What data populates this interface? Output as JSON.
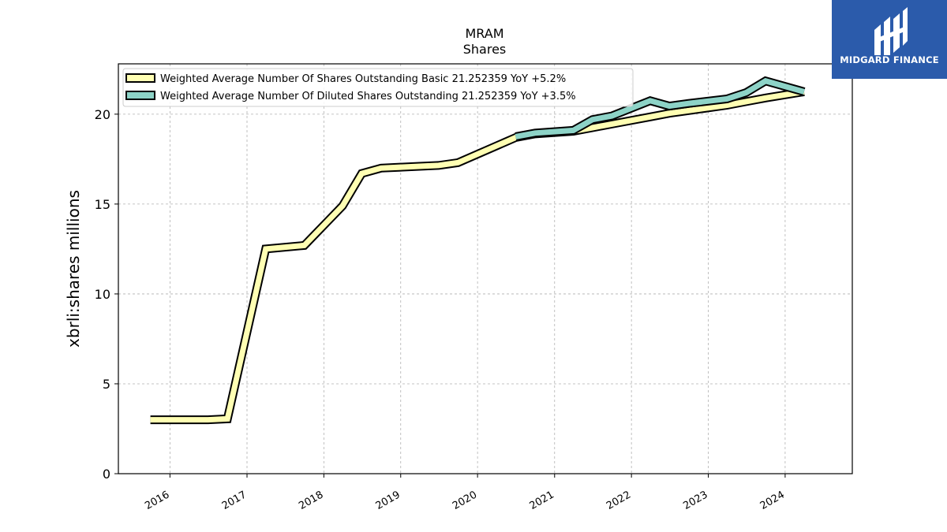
{
  "chart_data": {
    "type": "line",
    "title": "MRAM",
    "subtitle": "Shares",
    "ylabel": "xbrli:shares millions",
    "xlabel": "",
    "ylim": [
      0,
      22.8
    ],
    "xlim": [
      "2015-05-01",
      "2024-11-15"
    ],
    "yticks": [
      0,
      5,
      10,
      15,
      20
    ],
    "xticks": [
      "2016",
      "2017",
      "2018",
      "2019",
      "2020",
      "2021",
      "2022",
      "2023",
      "2024"
    ],
    "grid": true,
    "legend_position": "top-left",
    "series": [
      {
        "name": "Weighted Average Number Of Shares Outstanding Basic  21.252359 YoY +5.2%",
        "color": "#ffffb3",
        "points": [
          [
            "2015-09-30",
            3.0
          ],
          [
            "2015-12-31",
            3.0
          ],
          [
            "2016-03-31",
            3.0
          ],
          [
            "2016-06-30",
            3.0
          ],
          [
            "2016-09-30",
            3.05
          ],
          [
            "2017-03-31",
            12.5
          ],
          [
            "2017-09-30",
            12.7
          ],
          [
            "2018-03-31",
            14.9
          ],
          [
            "2018-06-30",
            16.7
          ],
          [
            "2018-09-30",
            17.0
          ],
          [
            "2019-03-31",
            17.1
          ],
          [
            "2019-06-30",
            17.15
          ],
          [
            "2019-09-30",
            17.3
          ],
          [
            "2020-06-30",
            18.7
          ],
          [
            "2020-09-30",
            18.9
          ],
          [
            "2021-03-31",
            19.05
          ],
          [
            "2021-06-30",
            19.25
          ],
          [
            "2021-09-30",
            19.45
          ],
          [
            "2022-03-31",
            19.85
          ],
          [
            "2022-06-30",
            20.05
          ],
          [
            "2022-09-30",
            20.2
          ],
          [
            "2023-03-31",
            20.5
          ],
          [
            "2023-06-30",
            20.7
          ],
          [
            "2023-09-30",
            20.9
          ],
          [
            "2024-03-31",
            21.25
          ]
        ]
      },
      {
        "name": "Weighted Average Number Of Diluted Shares Outstanding  21.252359 YoY +3.5%",
        "color": "#8dd3c7",
        "points": [
          [
            "2020-06-30",
            18.75
          ],
          [
            "2020-09-30",
            18.95
          ],
          [
            "2021-03-31",
            19.1
          ],
          [
            "2021-06-30",
            19.7
          ],
          [
            "2021-09-30",
            19.9
          ],
          [
            "2022-03-31",
            20.75
          ],
          [
            "2022-06-30",
            20.45
          ],
          [
            "2022-09-30",
            20.6
          ],
          [
            "2023-03-31",
            20.85
          ],
          [
            "2023-06-30",
            21.2
          ],
          [
            "2023-09-30",
            21.85
          ],
          [
            "2024-03-31",
            21.25
          ]
        ]
      }
    ]
  },
  "logo": {
    "text": "MIDGARD FINANCE",
    "bg_color": "#2b5bab"
  }
}
